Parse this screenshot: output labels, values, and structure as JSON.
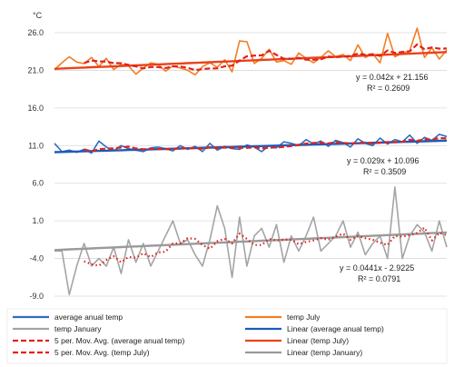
{
  "chart_data": {
    "type": "line",
    "unit": "°C",
    "ylim": [
      -9.0,
      26.0
    ],
    "yticks": [
      "26.0",
      "21.0",
      "16.0",
      "11.0",
      "6.0",
      "1.0",
      "-4.0",
      "-9.0"
    ],
    "ytick_values": [
      26,
      21,
      16,
      11,
      6,
      1,
      -4,
      -9
    ],
    "grid": true,
    "legend_position": "bottom",
    "colors": {
      "temp_july": "#f07f24",
      "july_trend": "#e8431a",
      "july_mavg": "#e3211c",
      "avg": "#2f6fc0",
      "avg_trend": "#1e5bb8",
      "avg_mavg": "#e3211c",
      "january": "#a4a4a4",
      "january_trend": "#9a9a9a",
      "january_mavg": "#e3211c"
    },
    "series": [
      {
        "name": "temp July",
        "values": [
          21.1,
          22.0,
          22.8,
          22.1,
          21.9,
          22.7,
          21.5,
          22.6,
          21.1,
          21.8,
          21.6,
          20.5,
          21.3,
          22.0,
          21.8,
          20.9,
          21.6,
          21.3,
          21.0,
          20.4,
          21.5,
          22.0,
          21.4,
          22.4,
          20.8,
          24.9,
          24.8,
          21.9,
          22.6,
          23.8,
          22.1,
          22.3,
          21.8,
          23.3,
          22.6,
          22.0,
          22.7,
          23.6,
          22.8,
          23.1,
          22.3,
          24.4,
          22.7,
          23.2,
          22.0,
          25.9,
          22.8,
          23.3,
          23.6,
          26.6,
          22.7,
          24.0,
          22.5,
          23.7
        ]
      },
      {
        "name": "average anual temp",
        "values": [
          11.3,
          10.2,
          10.4,
          10.1,
          10.5,
          10.0,
          11.6,
          10.8,
          10.3,
          11.0,
          10.6,
          10.4,
          10.2,
          10.7,
          10.8,
          10.6,
          10.3,
          11.0,
          10.5,
          10.9,
          10.2,
          11.3,
          10.4,
          10.9,
          10.6,
          10.5,
          11.1,
          10.8,
          10.2,
          11.0,
          10.7,
          11.5,
          11.3,
          11.0,
          11.8,
          11.2,
          11.6,
          10.9,
          11.7,
          11.4,
          10.8,
          11.9,
          11.3,
          11.0,
          12.0,
          11.2,
          11.8,
          11.5,
          12.4,
          11.3,
          12.1,
          11.7,
          12.5,
          12.2
        ]
      },
      {
        "name": "temp January",
        "values": [
          -3.0,
          -3.0,
          -8.8,
          -5.0,
          -2.0,
          -5.0,
          -4.0,
          -5.0,
          -2.5,
          -6.0,
          -1.5,
          -4.5,
          -2.0,
          -5.0,
          -3.0,
          -1.0,
          1.0,
          -2.0,
          -1.5,
          -3.5,
          -5.0,
          -1.5,
          3.0,
          0.0,
          -6.5,
          1.5,
          -5.0,
          -1.0,
          0.0,
          -2.5,
          0.5,
          -4.5,
          -1.0,
          -3.0,
          -1.0,
          1.5,
          -3.0,
          -2.0,
          -1.0,
          1.0,
          -2.5,
          -0.5,
          -3.5,
          -2.0,
          -1.0,
          -4.0,
          5.5,
          -4.0,
          -1.0,
          0.5,
          -0.5,
          -3.0,
          1.0,
          -2.5
        ]
      }
    ],
    "trendlines": [
      {
        "name": "Linear (temp July)",
        "equation": "y = 0.042x + 21.156",
        "r2": "R² = 0.2609",
        "slope": 0.042,
        "intercept": 21.156
      },
      {
        "name": "Linear (average anual temp)",
        "equation": "y = 0.029x + 10.096",
        "r2": "R² = 0.3509",
        "slope": 0.029,
        "intercept": 10.096
      },
      {
        "name": "Linear (temp January)",
        "equation": "y = 0.0441x - 2.9225",
        "r2": "R² = 0.0791",
        "slope": 0.0441,
        "intercept": -2.9225
      }
    ],
    "moving_average_period": 5,
    "legend": [
      {
        "label": "average anual temp",
        "key": "avg",
        "style": "solid"
      },
      {
        "label": "temp July",
        "key": "temp_july",
        "style": "solid"
      },
      {
        "label": "temp January",
        "key": "january",
        "style": "solid"
      },
      {
        "label": "Linear (average anual temp)",
        "key": "avg_trend",
        "style": "solid"
      },
      {
        "label": "5 per. Mov. Avg. (average anual temp)",
        "key": "avg_mavg",
        "style": "dash"
      },
      {
        "label": "Linear (temp July)",
        "key": "july_trend",
        "style": "solid"
      },
      {
        "label": "5 per. Mov. Avg. (temp July)",
        "key": "july_mavg",
        "style": "dash"
      },
      {
        "label": "Linear (temp January)",
        "key": "january_trend",
        "style": "solid"
      }
    ]
  }
}
